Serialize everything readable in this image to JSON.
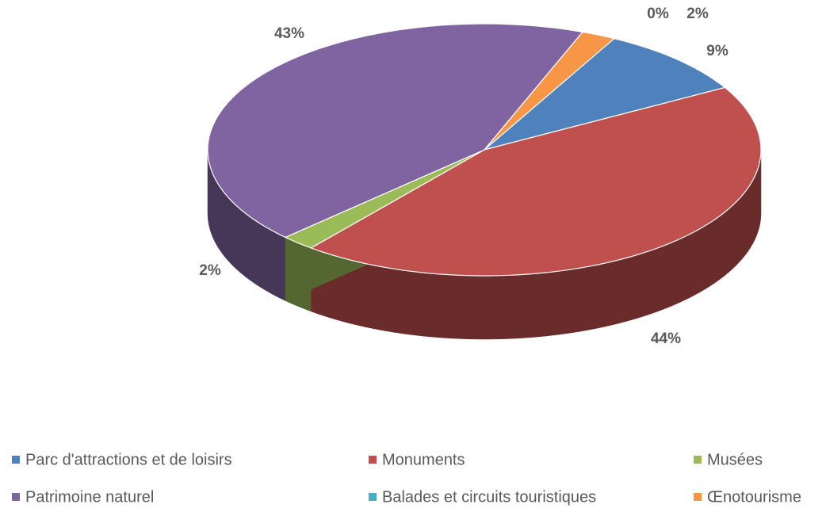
{
  "chart_data": {
    "type": "pie3d",
    "categories": [
      "Parc d'attractions et de loisirs",
      "Monuments",
      "Musées",
      "Patrimoine naturel",
      "Balades et circuits touristiques",
      "Œnotourisme"
    ],
    "values": [
      9,
      44,
      2,
      43,
      0,
      2
    ],
    "value_labels": [
      "9%",
      "44%",
      "2%",
      "43%",
      "0%",
      "2%"
    ],
    "colors": [
      "#4f81bd",
      "#c0504d",
      "#9bbb59",
      "#8064a2",
      "#4bacc6",
      "#f79646"
    ],
    "legend": "bottom"
  }
}
